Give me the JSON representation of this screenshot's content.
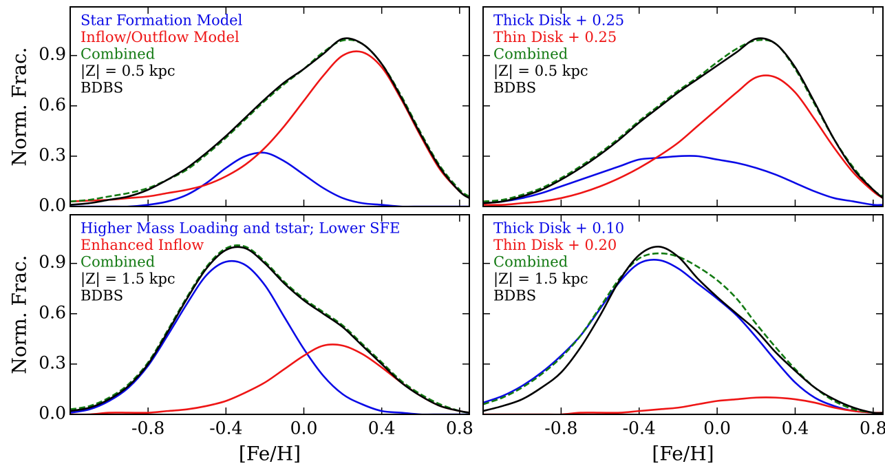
{
  "chart_data": [
    {
      "type": "line",
      "ylabel": "Norm. Frac.",
      "x": [
        -1.2,
        -1.1,
        -1.0,
        -0.9,
        -0.8,
        -0.7,
        -0.6,
        -0.5,
        -0.4,
        -0.3,
        -0.2,
        -0.1,
        0.0,
        0.1,
        0.2,
        0.3,
        0.4,
        0.5,
        0.6,
        0.7,
        0.8,
        0.85
      ],
      "xlim": [
        -1.2,
        0.85
      ],
      "ylim": [
        0,
        1.19
      ],
      "xticks": [
        -0.8,
        -0.4,
        0,
        0.4,
        0.8
      ],
      "yticks": [
        {
          "value": 0,
          "label": "0.0"
        },
        0.3,
        0.6,
        0.9
      ],
      "annotations": [
        "|Z| = 0.5 kpc",
        "BDBS"
      ],
      "series": [
        {
          "name": "Star Formation Model",
          "color": "#0a0ae6",
          "values": [
            0,
            0,
            0,
            0,
            0.01,
            0.03,
            0.07,
            0.14,
            0.23,
            0.3,
            0.32,
            0.27,
            0.19,
            0.11,
            0.05,
            0.02,
            0.01,
            0,
            0,
            0,
            0,
            0
          ]
        },
        {
          "name": "Inflow/Outflow Model",
          "color": "#ee1515",
          "values": [
            0.03,
            0.035,
            0.04,
            0.05,
            0.06,
            0.08,
            0.1,
            0.13,
            0.18,
            0.25,
            0.35,
            0.48,
            0.63,
            0.78,
            0.9,
            0.92,
            0.83,
            0.64,
            0.42,
            0.22,
            0.09,
            0.05
          ]
        },
        {
          "name": "Combined",
          "color": "#137a13",
          "dashed": true,
          "values": [
            0.03,
            0.04,
            0.06,
            0.08,
            0.11,
            0.16,
            0.22,
            0.31,
            0.41,
            0.52,
            0.63,
            0.73,
            0.82,
            0.92,
            0.99,
            0.97,
            0.85,
            0.66,
            0.44,
            0.24,
            0.1,
            0.06
          ]
        },
        {
          "color": "#000000",
          "values": [
            0.01,
            0.02,
            0.04,
            0.06,
            0.1,
            0.16,
            0.23,
            0.32,
            0.42,
            0.53,
            0.64,
            0.74,
            0.82,
            0.91,
            1.0,
            0.97,
            0.85,
            0.65,
            0.43,
            0.23,
            0.09,
            0.05
          ]
        }
      ]
    },
    {
      "type": "line",
      "x": [
        -1.2,
        -1.1,
        -1.0,
        -0.9,
        -0.8,
        -0.7,
        -0.6,
        -0.5,
        -0.4,
        -0.3,
        -0.2,
        -0.1,
        0.0,
        0.1,
        0.2,
        0.3,
        0.4,
        0.5,
        0.6,
        0.7,
        0.8,
        0.85
      ],
      "xlim": [
        -1.2,
        0.85
      ],
      "ylim": [
        0,
        1.19
      ],
      "xticks": [
        -0.8,
        -0.4,
        0,
        0.4,
        0.8
      ],
      "yticks": [
        0,
        0.3,
        0.6,
        0.9
      ],
      "annotations": [
        "|Z| = 0.5 kpc",
        "BDBS"
      ],
      "series": [
        {
          "name": "Thick Disk + 0.25",
          "color": "#0a0ae6",
          "values": [
            0.02,
            0.03,
            0.05,
            0.08,
            0.12,
            0.16,
            0.2,
            0.24,
            0.28,
            0.29,
            0.3,
            0.3,
            0.28,
            0.26,
            0.23,
            0.19,
            0.14,
            0.09,
            0.05,
            0.03,
            0.01,
            0.01
          ]
        },
        {
          "name": "Thin Disk + 0.25",
          "color": "#ee1515",
          "values": [
            0.01,
            0.01,
            0.02,
            0.03,
            0.05,
            0.08,
            0.12,
            0.17,
            0.23,
            0.3,
            0.38,
            0.48,
            0.58,
            0.68,
            0.77,
            0.77,
            0.68,
            0.52,
            0.35,
            0.2,
            0.09,
            0.05
          ]
        },
        {
          "name": "Combined",
          "color": "#137a13",
          "dashed": true,
          "values": [
            0.03,
            0.04,
            0.07,
            0.11,
            0.17,
            0.24,
            0.32,
            0.41,
            0.51,
            0.6,
            0.69,
            0.77,
            0.86,
            0.94,
            0.99,
            0.97,
            0.82,
            0.61,
            0.4,
            0.23,
            0.1,
            0.06
          ]
        },
        {
          "color": "#000000",
          "values": [
            0.02,
            0.03,
            0.06,
            0.1,
            0.16,
            0.23,
            0.31,
            0.4,
            0.5,
            0.59,
            0.68,
            0.76,
            0.84,
            0.92,
            1.0,
            0.97,
            0.83,
            0.62,
            0.4,
            0.22,
            0.1,
            0.05
          ]
        }
      ]
    },
    {
      "type": "line",
      "ylabel": "Norm. Frac.",
      "xlabel": "[Fe/H]",
      "x": [
        -1.2,
        -1.1,
        -1.0,
        -0.9,
        -0.8,
        -0.7,
        -0.6,
        -0.5,
        -0.4,
        -0.3,
        -0.2,
        -0.1,
        0.0,
        0.1,
        0.2,
        0.3,
        0.4,
        0.5,
        0.6,
        0.7,
        0.8,
        0.85
      ],
      "xlim": [
        -1.2,
        0.85
      ],
      "ylim": [
        0,
        1.19
      ],
      "xticks": [
        -0.8,
        -0.4,
        {
          "value": 0,
          "label": "0.0"
        },
        0.4,
        0.8
      ],
      "yticks": [
        {
          "value": 0,
          "label": "0.0"
        },
        0.3,
        0.6,
        0.9
      ],
      "annotations": [
        "|Z| = 1.5 kpc",
        "BDBS"
      ],
      "series": [
        {
          "name": "Higher Mass Loading and tstar; Lower SFE",
          "color": "#0a0ae6",
          "values": [
            0.01,
            0.03,
            0.08,
            0.16,
            0.29,
            0.47,
            0.66,
            0.83,
            0.91,
            0.89,
            0.77,
            0.58,
            0.39,
            0.23,
            0.12,
            0.06,
            0.02,
            0.01,
            0,
            0,
            0,
            0
          ]
        },
        {
          "name": "Enhanced Inflow",
          "color": "#ee1515",
          "values": [
            0,
            0,
            0.01,
            0.01,
            0.01,
            0.02,
            0.03,
            0.05,
            0.08,
            0.13,
            0.19,
            0.27,
            0.35,
            0.41,
            0.41,
            0.36,
            0.28,
            0.19,
            0.11,
            0.05,
            0.02,
            0.01
          ]
        },
        {
          "name": "Combined",
          "color": "#137a13",
          "dashed": true,
          "values": [
            0.03,
            0.05,
            0.1,
            0.18,
            0.31,
            0.5,
            0.7,
            0.88,
            0.99,
            1.0,
            0.91,
            0.79,
            0.69,
            0.61,
            0.53,
            0.42,
            0.31,
            0.2,
            0.12,
            0.06,
            0.02,
            0.01
          ]
        },
        {
          "color": "#000000",
          "values": [
            0.02,
            0.04,
            0.09,
            0.17,
            0.3,
            0.49,
            0.69,
            0.87,
            0.98,
            0.99,
            0.9,
            0.78,
            0.68,
            0.6,
            0.52,
            0.41,
            0.3,
            0.19,
            0.11,
            0.05,
            0.02,
            0.01
          ]
        }
      ]
    },
    {
      "type": "line",
      "xlabel": "[Fe/H]",
      "x": [
        -1.2,
        -1.1,
        -1.0,
        -0.9,
        -0.8,
        -0.7,
        -0.6,
        -0.5,
        -0.4,
        -0.3,
        -0.2,
        -0.1,
        0.0,
        0.1,
        0.2,
        0.3,
        0.4,
        0.5,
        0.6,
        0.7,
        0.8,
        0.85
      ],
      "xlim": [
        -1.2,
        0.85
      ],
      "ylim": [
        0,
        1.19
      ],
      "xticks": [
        -0.8,
        -0.4,
        {
          "value": 0,
          "label": "0.0"
        },
        0.4,
        0.8
      ],
      "yticks": [
        0,
        0.3,
        0.6,
        0.9
      ],
      "annotations": [
        "|Z| = 1.5 kpc",
        "BDBS"
      ],
      "series": [
        {
          "name": "Thick Disk + 0.10",
          "color": "#0a0ae6",
          "values": [
            0.07,
            0.11,
            0.17,
            0.25,
            0.35,
            0.47,
            0.63,
            0.79,
            0.9,
            0.92,
            0.87,
            0.78,
            0.69,
            0.59,
            0.46,
            0.32,
            0.19,
            0.1,
            0.05,
            0.02,
            0.01,
            0
          ]
        },
        {
          "name": "Thin Disk + 0.20",
          "color": "#ee1515",
          "values": [
            0,
            0,
            0,
            0,
            0,
            0.01,
            0.01,
            0.01,
            0.02,
            0.03,
            0.04,
            0.06,
            0.08,
            0.09,
            0.1,
            0.1,
            0.09,
            0.07,
            0.04,
            0.02,
            0.01,
            0.01
          ]
        },
        {
          "name": "Combined",
          "color": "#137a13",
          "dashed": true,
          "values": [
            0.06,
            0.1,
            0.16,
            0.24,
            0.34,
            0.47,
            0.64,
            0.81,
            0.93,
            0.96,
            0.94,
            0.88,
            0.8,
            0.69,
            0.54,
            0.4,
            0.27,
            0.16,
            0.08,
            0.03,
            0.01,
            0
          ]
        },
        {
          "color": "#000000",
          "values": [
            0.02,
            0.05,
            0.09,
            0.16,
            0.25,
            0.4,
            0.59,
            0.8,
            0.95,
            1.0,
            0.94,
            0.81,
            0.7,
            0.6,
            0.5,
            0.37,
            0.26,
            0.16,
            0.09,
            0.04,
            0.01,
            0.01
          ]
        }
      ]
    }
  ]
}
